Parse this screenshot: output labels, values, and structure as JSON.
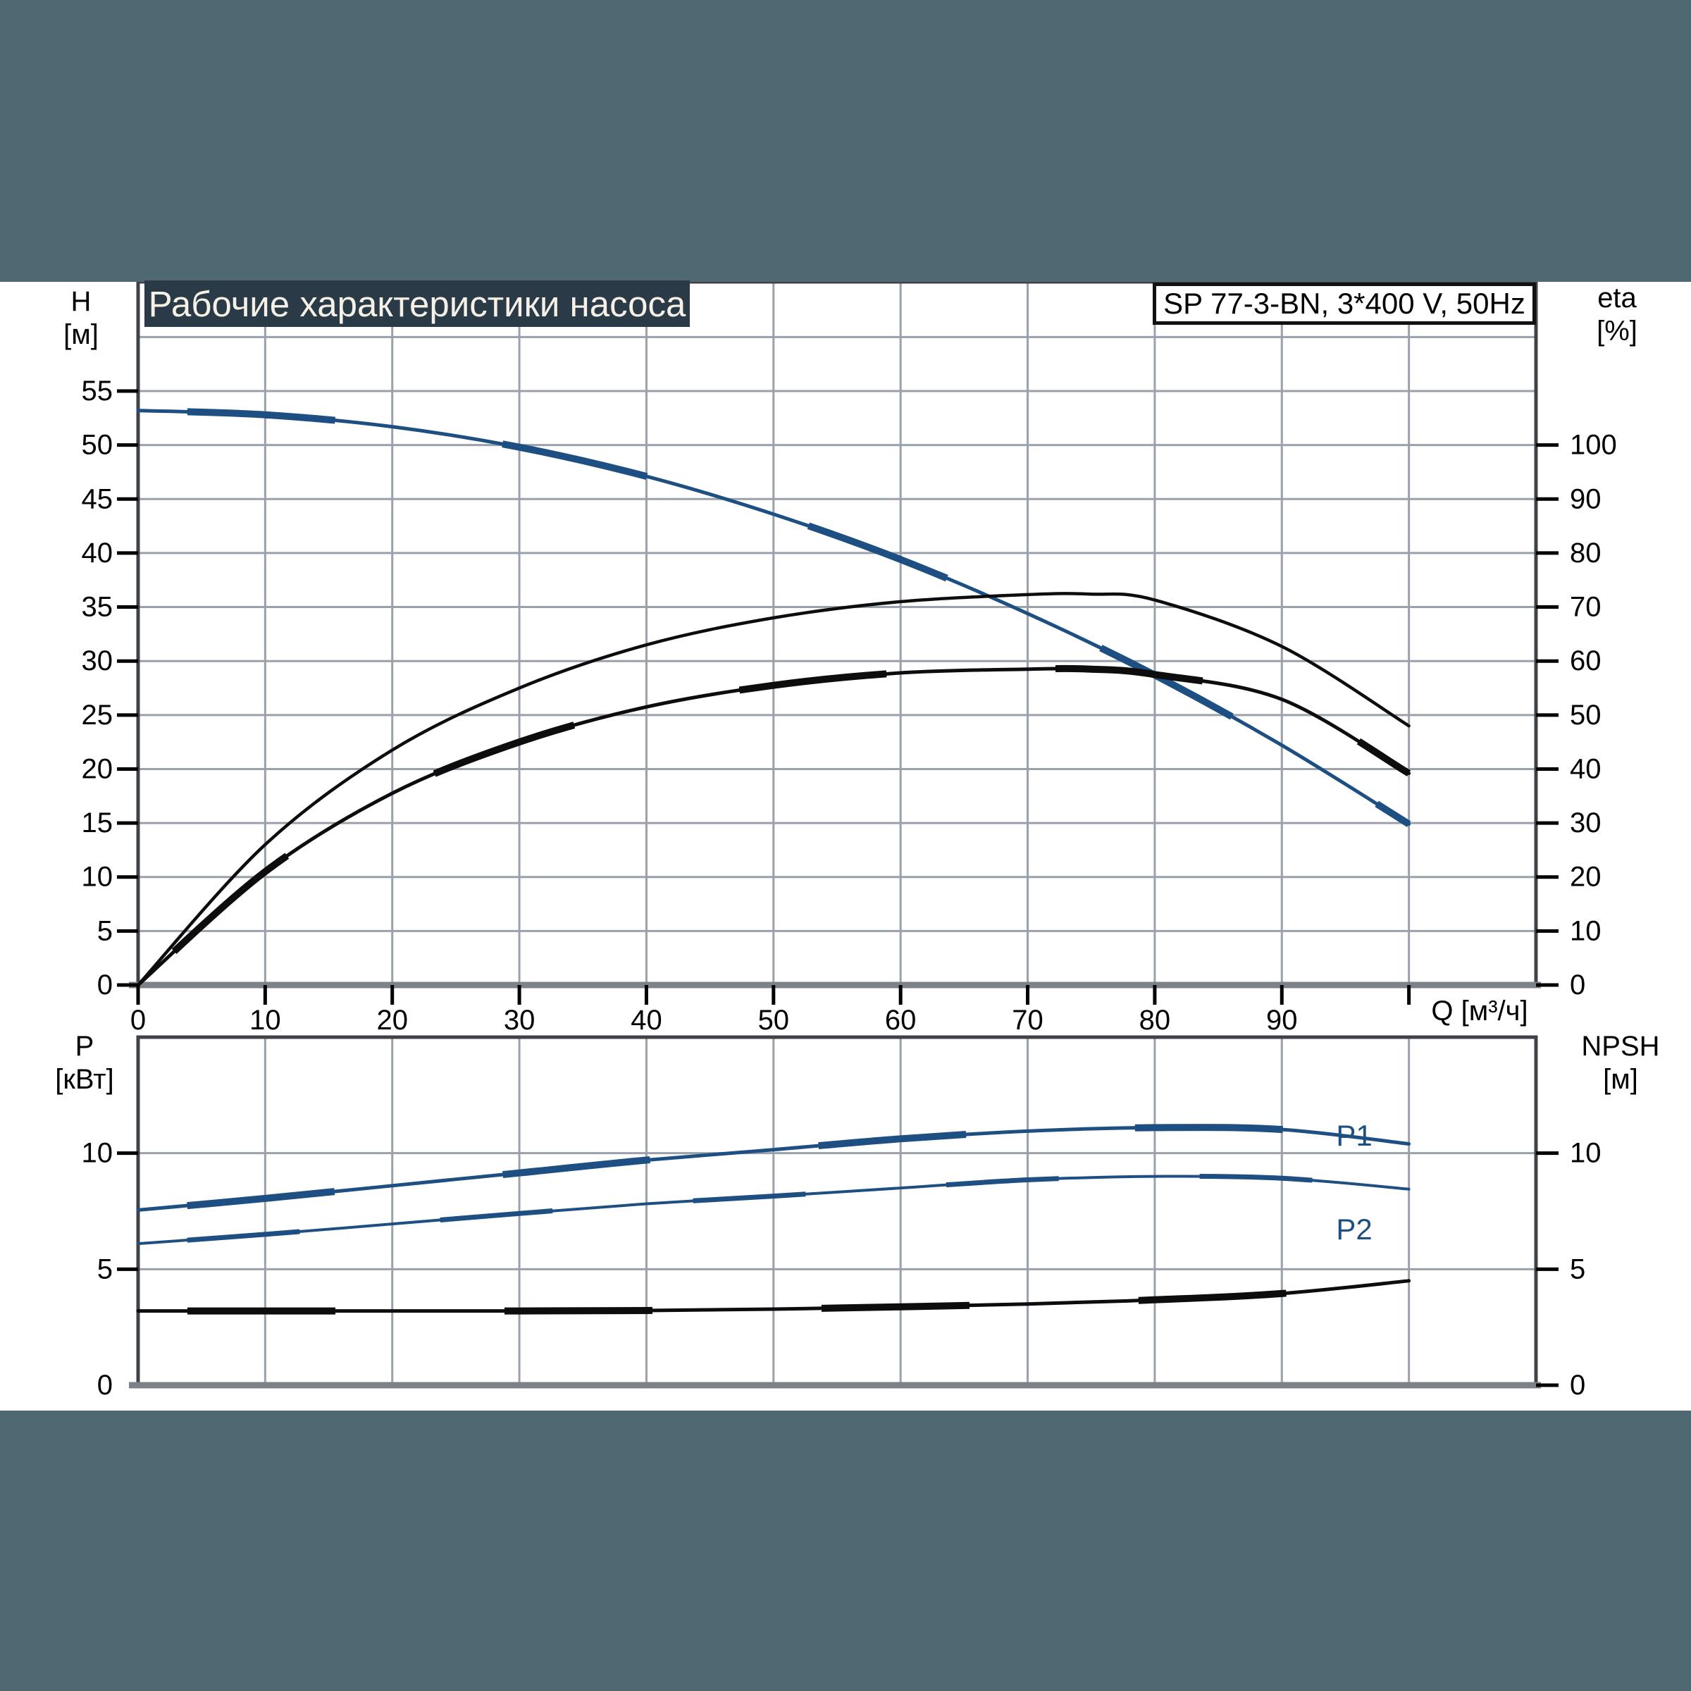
{
  "title": "Рабочие характеристики насоса",
  "type_label": "SP 77-3-BN, 3*400 V, 50Hz",
  "colors": {
    "band": "#4e6972",
    "titlebar_bg": "#2b3a47",
    "titlebar_text": "#f6f1e7",
    "frame": "#3f4349",
    "grid": "#9aa1ab",
    "axis_gray": "#7d8288",
    "curve_blue": "#1e4f82",
    "curve_black": "#0d0d0d",
    "text": "#000000"
  },
  "chart_data": {
    "type": "line",
    "top_chart": {
      "y_left": {
        "label": "H",
        "unit": "[м]",
        "ticks": [
          55,
          50,
          45,
          40,
          35,
          30,
          25,
          20,
          15,
          10,
          5,
          0
        ],
        "range": [
          0,
          65.1
        ],
        "grid_step": 5,
        "grid_max": 60
      },
      "y_right": {
        "label": "eta",
        "unit": "[%]",
        "ticks": [
          100,
          90,
          80,
          70,
          60,
          50,
          40,
          30,
          20,
          10,
          0
        ],
        "scale_vs_left": 2
      },
      "x": {
        "label": "Q [м³/ч]",
        "ticks": [
          0,
          10,
          20,
          30,
          40,
          50,
          60,
          70,
          80,
          90
        ],
        "grid_step": 10,
        "grid_max": 100,
        "range": [
          0,
          110
        ]
      },
      "series": [
        {
          "name": "H-Q curve",
          "axis": "left",
          "color": "blue",
          "style": "thick-dashed",
          "points": [
            [
              0,
              53.2
            ],
            [
              10,
              52.8
            ],
            [
              20,
              51.7
            ],
            [
              30,
              49.8
            ],
            [
              40,
              47.1
            ],
            [
              50,
              43.6
            ],
            [
              60,
              39.4
            ],
            [
              70,
              34.4
            ],
            [
              80,
              28.7
            ],
            [
              90,
              22.2
            ],
            [
              100,
              14.9
            ]
          ]
        },
        {
          "name": "eta pump curve (thin)",
          "axis": "right",
          "color": "black",
          "style": "thin",
          "points": [
            [
              0,
              0
            ],
            [
              10,
              26
            ],
            [
              20,
              43.5
            ],
            [
              30,
              55
            ],
            [
              40,
              63
            ],
            [
              50,
              68
            ],
            [
              60,
              71
            ],
            [
              70,
              72.3
            ],
            [
              75,
              72.4
            ],
            [
              80,
              71.3
            ],
            [
              90,
              62.7
            ],
            [
              100,
              48
            ]
          ]
        },
        {
          "name": "eta pump+motor curve (thick)",
          "axis": "right",
          "color": "black",
          "style": "thick-dashed",
          "points": [
            [
              0,
              0
            ],
            [
              10,
              21
            ],
            [
              20,
              35.5
            ],
            [
              30,
              45
            ],
            [
              40,
              51.5
            ],
            [
              50,
              55.5
            ],
            [
              60,
              57.8
            ],
            [
              70,
              58.5
            ],
            [
              75,
              58.5
            ],
            [
              80,
              57.5
            ],
            [
              90,
              52.9
            ],
            [
              100,
              39.2
            ]
          ]
        }
      ]
    },
    "bottom_chart": {
      "y_left": {
        "label": "P",
        "unit": "[кВт]",
        "ticks": [
          10,
          5,
          0
        ],
        "range": [
          0,
          15
        ],
        "grid_step": 5
      },
      "y_right": {
        "label": "NPSH",
        "unit": "[м]",
        "ticks": [
          10,
          5,
          0
        ],
        "range": [
          0,
          15
        ]
      },
      "x": {
        "ticks": [],
        "grid_step": 10,
        "grid_max": 100,
        "range": [
          0,
          110
        ]
      },
      "series": [
        {
          "name": "P1",
          "label": "P1",
          "axis": "left",
          "color": "blue",
          "style": "thick-dashed",
          "points": [
            [
              0,
              7.55
            ],
            [
              10,
              8.05
            ],
            [
              20,
              8.6
            ],
            [
              30,
              9.15
            ],
            [
              40,
              9.7
            ],
            [
              50,
              10.15
            ],
            [
              60,
              10.62
            ],
            [
              70,
              10.95
            ],
            [
              80,
              11.1
            ],
            [
              90,
              11.02
            ],
            [
              100,
              10.4
            ]
          ]
        },
        {
          "name": "P2",
          "label": "P2",
          "axis": "left",
          "color": "blue",
          "style": "medium-dashed",
          "points": [
            [
              0,
              6.1
            ],
            [
              10,
              6.5
            ],
            [
              20,
              6.95
            ],
            [
              30,
              7.4
            ],
            [
              40,
              7.82
            ],
            [
              50,
              8.15
            ],
            [
              60,
              8.5
            ],
            [
              70,
              8.85
            ],
            [
              80,
              9.0
            ],
            [
              90,
              8.92
            ],
            [
              100,
              8.45
            ]
          ]
        },
        {
          "name": "NPSH",
          "axis": "right",
          "color": "black",
          "style": "thick-dashed",
          "points": [
            [
              0,
              3.2
            ],
            [
              10,
              3.2
            ],
            [
              20,
              3.2
            ],
            [
              30,
              3.2
            ],
            [
              40,
              3.22
            ],
            [
              50,
              3.28
            ],
            [
              60,
              3.38
            ],
            [
              70,
              3.5
            ],
            [
              80,
              3.68
            ],
            [
              90,
              3.95
            ],
            [
              100,
              4.5
            ]
          ]
        }
      ],
      "labels": {
        "p1": "P1",
        "p2": "P2"
      }
    }
  }
}
